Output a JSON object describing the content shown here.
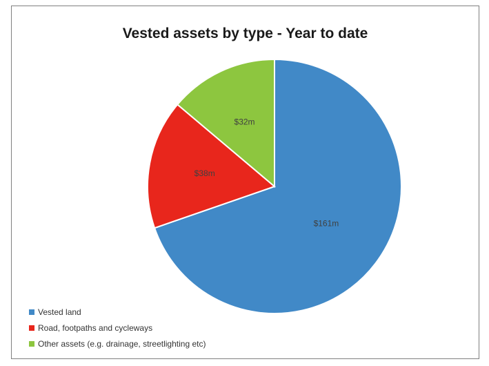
{
  "chart_data": {
    "type": "pie",
    "title": "Vested assets by type - Year to date",
    "slices": [
      {
        "name": "Vested land",
        "value": 161,
        "label": "$161m",
        "color": "#4189c7"
      },
      {
        "name": "Road, footpaths and cycleways",
        "value": 38,
        "label": "$38m",
        "color": "#e8261c"
      },
      {
        "name": "Other assets (e.g. drainage, streetlighting etc)",
        "value": 32,
        "label": "$32m",
        "color": "#8dc63f"
      }
    ],
    "start_angle_deg": 0,
    "direction": "clockwise",
    "legend_position": "bottom-left"
  }
}
